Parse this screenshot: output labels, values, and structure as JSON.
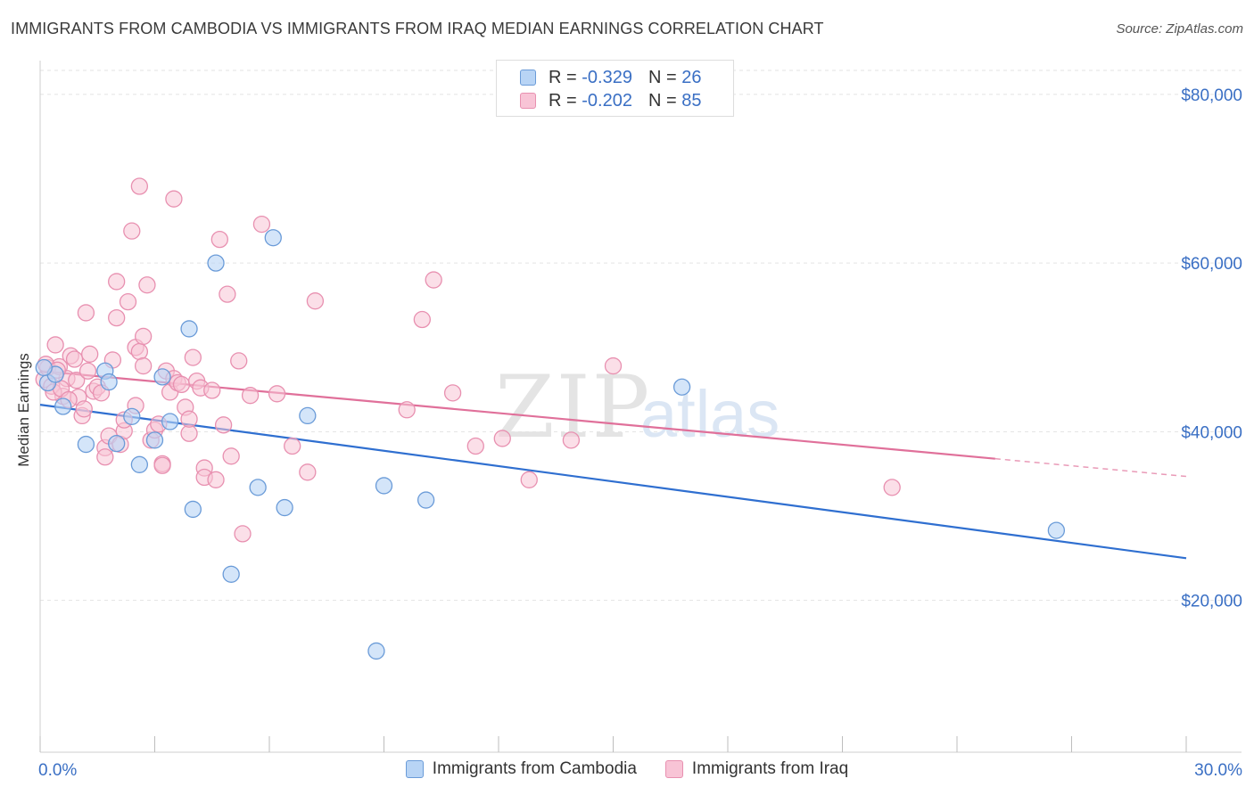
{
  "header": {
    "title": "IMMIGRANTS FROM CAMBODIA VS IMMIGRANTS FROM IRAQ MEDIAN EARNINGS CORRELATION CHART",
    "source": "Source: ZipAtlas.com"
  },
  "watermark": {
    "zip": "ZIP",
    "atlas": "atlas"
  },
  "legend": {
    "rows": [
      {
        "r_label": "R = ",
        "r_value": "-0.329",
        "n_label": "N = ",
        "n_value": "26"
      },
      {
        "r_label": "R = ",
        "r_value": "-0.202",
        "n_label": "N = ",
        "n_value": "85"
      }
    ]
  },
  "colors": {
    "cambodia_fill": "#b8d4f5",
    "cambodia_stroke": "#6a9bd8",
    "cambodia_line": "#2f6fd0",
    "iraq_fill": "#f8c4d6",
    "iraq_stroke": "#e890b0",
    "iraq_line": "#e0709a",
    "tick_text": "#3a6fc4"
  },
  "chart_data": {
    "type": "scatter",
    "title": "IMMIGRANTS FROM CAMBODIA VS IMMIGRANTS FROM IRAQ MEDIAN EARNINGS CORRELATION CHART",
    "xlabel": "",
    "ylabel": "Median Earnings",
    "xlim": [
      0,
      30
    ],
    "ylim": [
      2000,
      84000
    ],
    "x_tick_labels": [
      "0.0%",
      "30.0%"
    ],
    "y_ticks": [
      20000,
      40000,
      60000,
      80000
    ],
    "y_tick_labels": [
      "$20,000",
      "$40,000",
      "$60,000",
      "$80,000"
    ],
    "grid": true,
    "legend_position": "bottom",
    "series": [
      {
        "name": "Immigrants from Cambodia",
        "r": -0.329,
        "n": 26,
        "trend": {
          "x": [
            0,
            30
          ],
          "y": [
            43200,
            25000
          ]
        },
        "points": [
          [
            0.2,
            45800
          ],
          [
            0.4,
            46800
          ],
          [
            0.6,
            43000
          ],
          [
            1.2,
            38500
          ],
          [
            1.7,
            47200
          ],
          [
            1.8,
            45900
          ],
          [
            2.0,
            38600
          ],
          [
            2.4,
            41800
          ],
          [
            2.6,
            36100
          ],
          [
            3.0,
            39000
          ],
          [
            3.2,
            46500
          ],
          [
            3.4,
            41200
          ],
          [
            3.9,
            52200
          ],
          [
            4.0,
            30800
          ],
          [
            4.6,
            60000
          ],
          [
            5.0,
            23100
          ],
          [
            5.7,
            33400
          ],
          [
            6.1,
            63000
          ],
          [
            6.4,
            31000
          ],
          [
            7.0,
            41900
          ],
          [
            8.8,
            14000
          ],
          [
            9.0,
            33600
          ],
          [
            10.1,
            31900
          ],
          [
            16.8,
            45300
          ],
          [
            26.6,
            28300
          ],
          [
            0.1,
            47600
          ]
        ]
      },
      {
        "name": "Immigrants from Iraq",
        "r": -0.202,
        "n": 85,
        "trend": {
          "x": [
            0,
            25
          ],
          "y": [
            47200,
            36800
          ]
        },
        "trend_dashed": {
          "x": [
            25,
            30
          ],
          "y": [
            36800,
            34700
          ]
        },
        "points": [
          [
            0.1,
            46200
          ],
          [
            0.2,
            47600
          ],
          [
            0.3,
            45400
          ],
          [
            0.4,
            50300
          ],
          [
            0.5,
            47700
          ],
          [
            0.6,
            44200
          ],
          [
            0.7,
            46300
          ],
          [
            0.8,
            49000
          ],
          [
            0.9,
            48600
          ],
          [
            1.0,
            44100
          ],
          [
            1.1,
            41900
          ],
          [
            1.2,
            54100
          ],
          [
            1.3,
            49200
          ],
          [
            1.4,
            44800
          ],
          [
            1.5,
            45300
          ],
          [
            1.6,
            44600
          ],
          [
            1.7,
            38100
          ],
          [
            1.7,
            37000
          ],
          [
            1.8,
            39500
          ],
          [
            1.9,
            48500
          ],
          [
            2.0,
            53500
          ],
          [
            2.1,
            38500
          ],
          [
            2.2,
            40100
          ],
          [
            2.2,
            41400
          ],
          [
            2.3,
            55400
          ],
          [
            2.4,
            63800
          ],
          [
            2.5,
            50000
          ],
          [
            2.5,
            43100
          ],
          [
            2.6,
            69100
          ],
          [
            2.6,
            49500
          ],
          [
            2.7,
            51300
          ],
          [
            2.7,
            47800
          ],
          [
            2.8,
            57400
          ],
          [
            2.9,
            39000
          ],
          [
            3.0,
            40200
          ],
          [
            3.1,
            40900
          ],
          [
            3.2,
            36200
          ],
          [
            3.2,
            36000
          ],
          [
            3.3,
            47200
          ],
          [
            3.4,
            44700
          ],
          [
            3.5,
            46300
          ],
          [
            3.5,
            67600
          ],
          [
            3.6,
            45800
          ],
          [
            3.7,
            45600
          ],
          [
            3.8,
            42900
          ],
          [
            3.9,
            39800
          ],
          [
            3.9,
            41500
          ],
          [
            4.0,
            48800
          ],
          [
            4.1,
            46000
          ],
          [
            4.2,
            45200
          ],
          [
            4.3,
            35700
          ],
          [
            4.3,
            34600
          ],
          [
            4.5,
            44900
          ],
          [
            4.6,
            34300
          ],
          [
            4.7,
            62800
          ],
          [
            4.8,
            40800
          ],
          [
            4.9,
            56300
          ],
          [
            5.0,
            37100
          ],
          [
            5.2,
            48400
          ],
          [
            5.3,
            27900
          ],
          [
            5.5,
            44300
          ],
          [
            5.8,
            64600
          ],
          [
            6.2,
            44500
          ],
          [
            6.6,
            38300
          ],
          [
            7.0,
            35200
          ],
          [
            7.2,
            55500
          ],
          [
            9.6,
            42600
          ],
          [
            10.0,
            53300
          ],
          [
            10.3,
            58000
          ],
          [
            10.8,
            44600
          ],
          [
            11.4,
            38300
          ],
          [
            12.1,
            39200
          ],
          [
            12.8,
            34300
          ],
          [
            13.9,
            39000
          ],
          [
            15.0,
            47800
          ],
          [
            22.3,
            33400
          ],
          [
            0.15,
            48000
          ],
          [
            0.35,
            44700
          ],
          [
            0.55,
            45100
          ],
          [
            0.75,
            43800
          ],
          [
            0.95,
            46100
          ],
          [
            1.15,
            42700
          ],
          [
            2.0,
            57800
          ],
          [
            1.25,
            47200
          ],
          [
            0.45,
            47300
          ]
        ]
      }
    ]
  },
  "bottom_legend": {
    "items": [
      "Immigrants from Cambodia",
      "Immigrants from Iraq"
    ]
  }
}
